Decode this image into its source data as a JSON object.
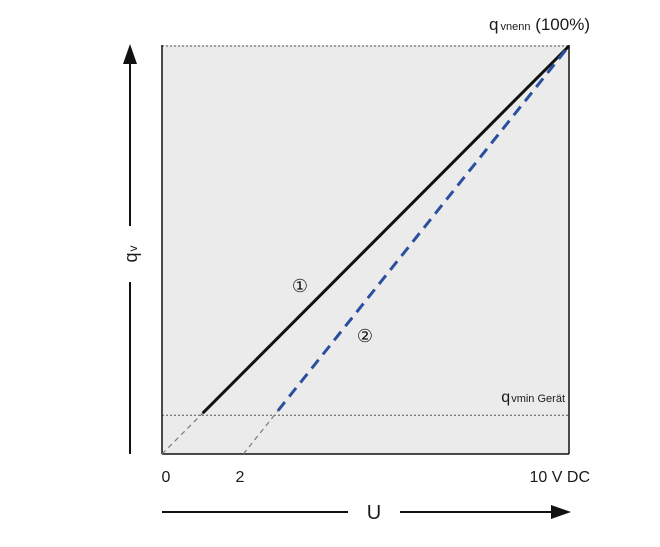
{
  "chart_data": {
    "type": "line",
    "xlabel": "U",
    "ylabel": "q",
    "ylabel_sub": "v",
    "xlim": [
      0,
      10
    ],
    "ylim": [
      0,
      100
    ],
    "x_ticks": [
      "0",
      "2",
      "10 V DC"
    ],
    "grid": false,
    "legend": "none",
    "reference_lines": [
      {
        "label_main": "q",
        "label_sub": "vnenn",
        "label_suffix": " (100%)",
        "y": 100
      },
      {
        "label_main": "q",
        "label_sub": "vmin Gerät",
        "label_suffix": "",
        "y": 9.5
      }
    ],
    "series": [
      {
        "marker": "①",
        "style": "solid",
        "color": "#111111",
        "solid_x": [
          1.0,
          10.0
        ],
        "extension_x": [
          0,
          1.0
        ],
        "x0": 0,
        "y0": 0,
        "x1": 10,
        "y1": 100
      },
      {
        "marker": "②",
        "style": "dashed",
        "color": "#2a4f9e",
        "solid_x": [
          2.85,
          10.0
        ],
        "extension_x": [
          2.0,
          2.85
        ],
        "x0": 2,
        "y0": 0,
        "x1": 10,
        "y1": 100
      }
    ],
    "colors": {
      "plot_background": "#ebebeb",
      "axis": "#111111",
      "extension": "#7a7a7a"
    }
  }
}
